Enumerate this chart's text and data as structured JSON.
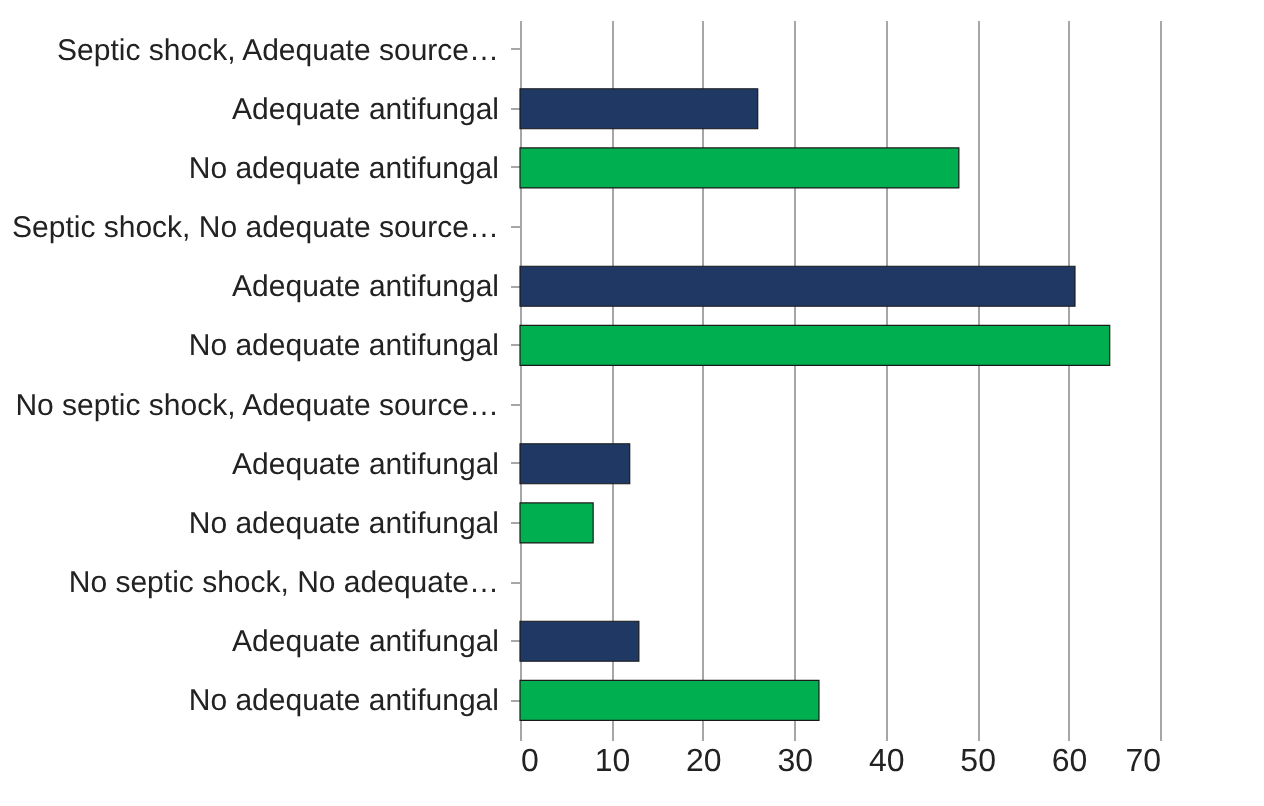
{
  "chart_data": {
    "type": "bar",
    "orientation": "horizontal",
    "categories": [
      "Septic shock, Adequate source…",
      "Adequate antifungal",
      "No adequate antifungal",
      "Septic shock, No adequate source…",
      "Adequate antifungal",
      "No adequate antifungal",
      "No septic shock, Adequate source…",
      "Adequate antifungal",
      "No adequate antifungal",
      "No septic shock, No adequate…",
      "Adequate antifungal",
      "No adequate antifungal"
    ],
    "values": [
      null,
      26,
      48,
      null,
      60.7,
      64.5,
      null,
      12,
      8,
      null,
      13,
      32.7
    ],
    "colors": [
      "#1f3864",
      "#1f3864",
      "#00b050",
      "#1f3864",
      "#1f3864",
      "#00b050",
      "#1f3864",
      "#1f3864",
      "#00b050",
      "#1f3864",
      "#1f3864",
      "#00b050"
    ],
    "xlim": [
      0,
      70
    ],
    "xticks": [
      0,
      10,
      20,
      30,
      40,
      50,
      60,
      70
    ],
    "grid": "x"
  }
}
